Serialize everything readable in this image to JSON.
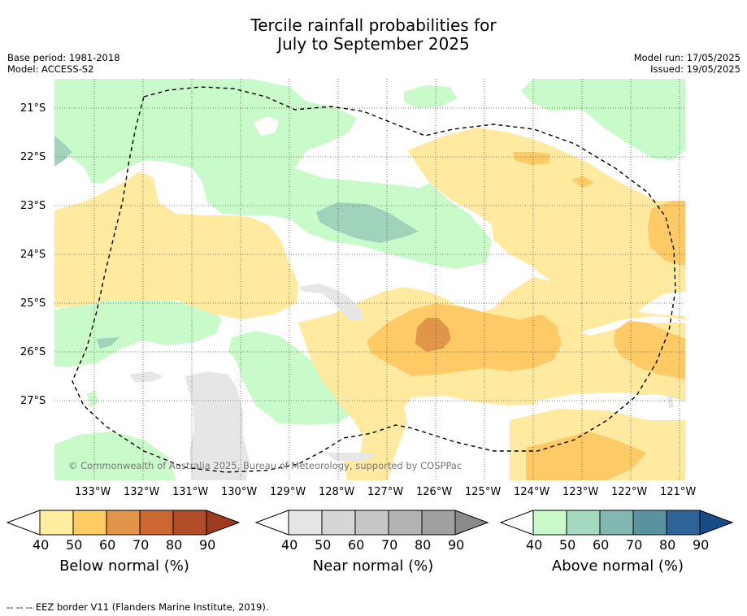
{
  "title_line1": "Tercile rainfall probabilities for",
  "title_line2": "July to September 2025",
  "left_info": {
    "base_period": "Base period: 1981-2018",
    "model": "Model: ACCESS-S2"
  },
  "right_info": {
    "model_run": "Model run: 17/05/2025",
    "issued": "Issued: 19/05/2025"
  },
  "map": {
    "lat_labels": [
      "21°S",
      "22°S",
      "23°S",
      "24°S",
      "25°S",
      "26°S",
      "27°S"
    ],
    "lon_labels": [
      "133°W",
      "132°W",
      "131°W",
      "130°W",
      "129°W",
      "128°W",
      "127°W",
      "126°W",
      "125°W",
      "124°W",
      "123°W",
      "122°W",
      "121°W"
    ],
    "copyright": "© Commonwealth of Australia 2025, Bureau of Meteorology, supported by COSPPac",
    "colors": {
      "below_40": "#ffeaa0",
      "below_50": "#fdca65",
      "below_60": "#e19546",
      "near_40": "#e6e6e6",
      "above_40": "#c9fac9",
      "above_50": "#a0d4ba"
    }
  },
  "colorbars": [
    {
      "title": "Below normal (%)",
      "ticks": [
        "40",
        "50",
        "60",
        "70",
        "80",
        "90"
      ],
      "colors": [
        "#ffeda0",
        "#fecb63",
        "#e1954a",
        "#cc6633",
        "#b04c28",
        "#9c3b1f"
      ]
    },
    {
      "title": "Near normal (%)",
      "ticks": [
        "40",
        "50",
        "60",
        "70",
        "80",
        "90"
      ],
      "colors": [
        "#e6e6e6",
        "#d6d6d6",
        "#c6c6c6",
        "#b3b3b3",
        "#a0a0a0",
        "#8a8a8a"
      ]
    },
    {
      "title": "Above normal (%)",
      "ticks": [
        "40",
        "50",
        "60",
        "70",
        "80",
        "90"
      ],
      "colors": [
        "#c9fac9",
        "#a5d9bf",
        "#82b8b1",
        "#5a92a0",
        "#2f6296",
        "#174c86"
      ]
    }
  ],
  "footnote": "--  --  -- EEZ border V11 (Flanders Marine Institute, 2019)."
}
